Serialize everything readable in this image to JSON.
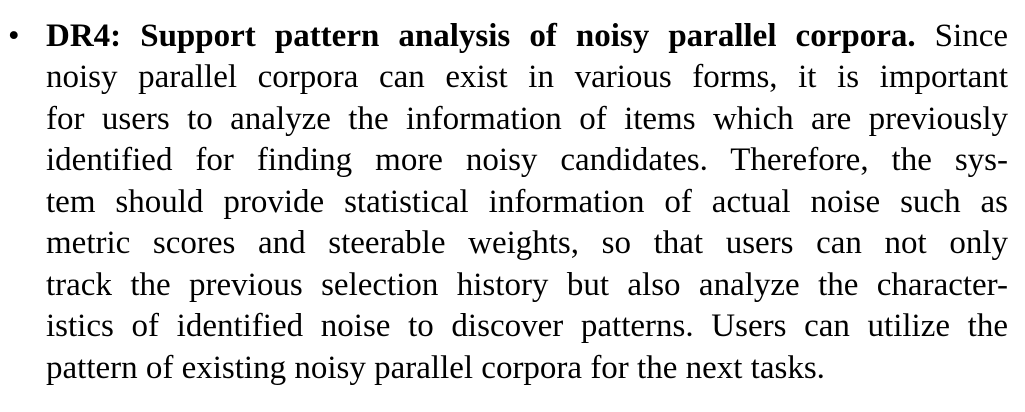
{
  "paragraph": {
    "bullet": "•",
    "lead": "DR4: Support pattern analysis of noisy parallel corpora.",
    "lines": [
      " Since",
      "noisy parallel corpora can exist in various forms, it is important",
      "for users to analyze the information of items which are previously",
      "identified for finding more noisy candidates. Therefore, the sys-",
      "tem should provide statistical information of actual noise such as",
      "metric scores and steerable weights, so that users can not only",
      "track the previous selection history but also analyze the character-",
      "istics of identified noise to discover patterns. Users can utilize the",
      "pattern of existing noisy parallel corpora for the next tasks."
    ]
  }
}
